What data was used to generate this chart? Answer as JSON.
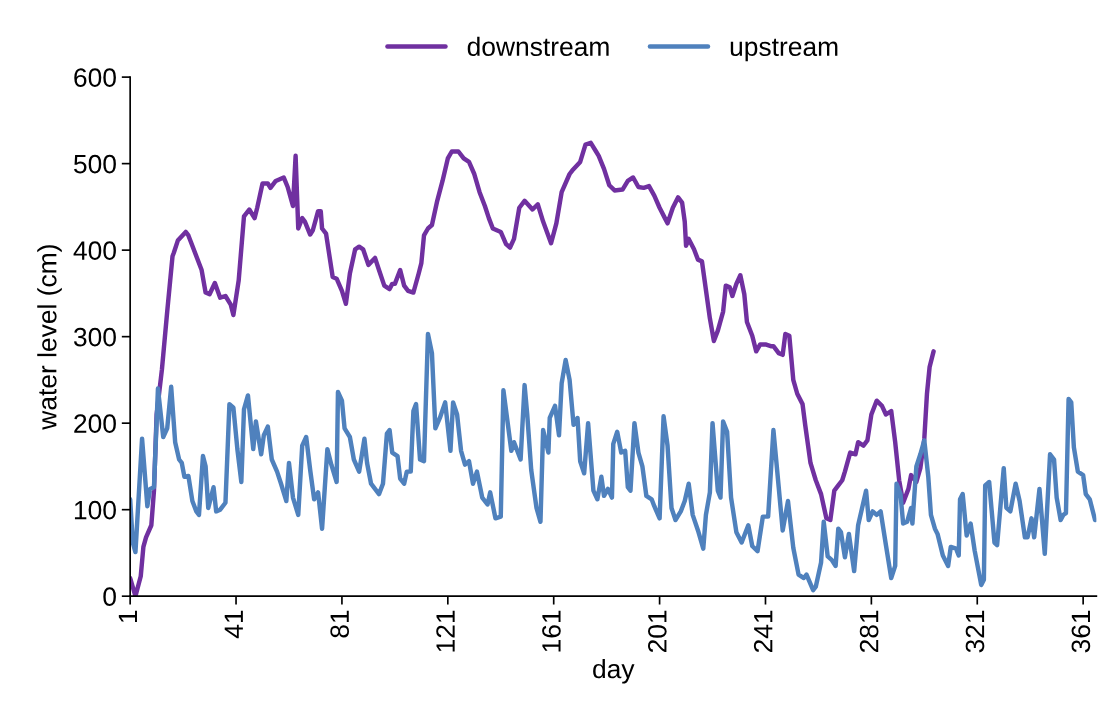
{
  "chart_data": {
    "type": "line",
    "xlabel": "day",
    "ylabel": "water level (cm)",
    "xlim": [
      1,
      366
    ],
    "xticks": [
      1,
      41,
      81,
      121,
      161,
      201,
      241,
      281,
      321,
      361
    ],
    "ylim": [
      0,
      600
    ],
    "yticks": [
      0,
      100,
      200,
      300,
      400,
      500,
      600
    ],
    "grid": false,
    "legend": "top",
    "marker": "none",
    "line_style": "solid",
    "series": [
      {
        "name": "downstream",
        "color": "#7030a0",
        "x": [
          1,
          3,
          5,
          6,
          7,
          9,
          10,
          11,
          13,
          15,
          17,
          17.5,
          19,
          22,
          23,
          25,
          28,
          29.5,
          31,
          33,
          35,
          37,
          39,
          40,
          42,
          44,
          46,
          48,
          49,
          51,
          53,
          54,
          56,
          59,
          60.5,
          62.5,
          63.5,
          64.5,
          66,
          67,
          69,
          70,
          72,
          73,
          73.5,
          75,
          76,
          77.5,
          79,
          81,
          82.5,
          84,
          86,
          87.5,
          89,
          91,
          93.5,
          95,
          97,
          99,
          100,
          101,
          103,
          104.5,
          106,
          108,
          110,
          111,
          112,
          113.5,
          115,
          117,
          119,
          121,
          122.5,
          125,
          127,
          129,
          131,
          133,
          135,
          136.5,
          138,
          141,
          143,
          144.5,
          146,
          148,
          150,
          153,
          155,
          157,
          160,
          162,
          164,
          167,
          168,
          171,
          173,
          175,
          177,
          178,
          180,
          182,
          184,
          187,
          189,
          191,
          193,
          195,
          197,
          199,
          201,
          203,
          204,
          206,
          208,
          209.5,
          210.5,
          211,
          212,
          214,
          215.5,
          217,
          218,
          220,
          221.5,
          223,
          225,
          226,
          227.5,
          228.5,
          230,
          231.5,
          233,
          234,
          236,
          237.5,
          239,
          241,
          243,
          244,
          246,
          247.5,
          248.5,
          250,
          251.5,
          253,
          255,
          256,
          258,
          260,
          262,
          264,
          265.5,
          267,
          268.5,
          270,
          271,
          273,
          275,
          276,
          278,
          279.5,
          281,
          283,
          285,
          286.5,
          288.5,
          290,
          291.5,
          293,
          295,
          296,
          298,
          299.5,
          301,
          302,
          303,
          304.5
        ],
        "values": [
          21,
          0,
          23,
          57,
          68,
          82,
          122,
          210,
          262,
          329,
          393,
          397,
          411,
          421,
          417,
          401,
          377,
          351,
          349,
          362,
          345,
          347,
          337,
          325,
          365,
          439,
          447,
          437,
          449,
          477,
          477,
          472,
          480,
          484,
          473,
          451,
          509,
          425,
          437,
          433,
          418,
          423,
          445,
          445,
          425,
          419,
          399,
          369,
          367,
          353,
          338,
          373,
          401,
          404,
          401,
          383,
          391,
          377,
          359,
          355,
          361,
          361,
          377,
          359,
          353,
          351,
          373,
          385,
          417,
          425,
          429,
          457,
          480,
          506,
          514,
          514,
          506,
          502,
          488,
          467,
          451,
          437,
          425,
          421,
          407,
          403,
          413,
          449,
          457,
          447,
          453,
          433,
          408,
          431,
          467,
          488,
          492,
          502,
          522,
          524,
          514,
          509,
          494,
          475,
          469,
          470,
          480,
          484,
          473,
          472,
          474,
          463,
          449,
          437,
          431,
          449,
          461,
          455,
          433,
          405,
          413,
          401,
          389,
          387,
          365,
          321,
          295,
          307,
          329,
          359,
          357,
          347,
          361,
          371,
          349,
          317,
          301,
          283,
          291,
          291,
          289,
          289,
          281,
          279,
          303,
          301,
          250,
          234,
          222,
          198,
          154,
          134,
          118,
          90,
          88,
          122,
          128,
          134,
          144,
          166,
          164,
          178,
          174,
          180,
          210,
          226,
          220,
          210,
          214,
          178,
          134,
          108,
          124,
          140,
          132,
          148,
          182,
          234,
          265,
          283
        ]
      },
      {
        "name": "upstream",
        "color": "#4f81bd",
        "x": [
          1,
          2,
          3,
          5.5,
          7.5,
          8.5,
          10,
          11.5,
          13.5,
          15,
          16.5,
          18,
          19.5,
          20.5,
          21.5,
          23,
          24.5,
          26,
          27,
          28.5,
          29.5,
          30.5,
          32.5,
          33.5,
          35,
          37,
          38.5,
          40,
          41.5,
          43,
          44,
          45.5,
          47.5,
          48.5,
          50.5,
          51.5,
          53,
          54.5,
          56.5,
          58,
          60,
          61,
          62.5,
          64.5,
          66,
          67.5,
          69,
          70.5,
          72,
          73.5,
          75.5,
          77,
          79,
          79.5,
          81,
          82,
          84,
          85.5,
          87.5,
          89.5,
          90.5,
          92,
          93.5,
          95,
          96.5,
          98,
          99,
          100,
          102,
          103,
          104.5,
          105.5,
          107,
          108,
          109,
          110.5,
          112,
          113.5,
          115,
          116.3,
          118,
          120,
          122,
          123,
          124.5,
          126,
          127.5,
          129,
          130.5,
          132,
          134,
          136,
          137,
          139,
          141,
          142,
          145,
          146,
          148.5,
          150,
          151,
          152.5,
          154.5,
          156,
          157,
          159,
          159.5,
          161.5,
          163,
          164,
          165.5,
          167,
          168.5,
          170,
          171,
          172.5,
          174,
          176,
          177.5,
          179,
          180,
          181.5,
          183,
          183.5,
          185,
          186.5,
          188,
          189,
          190,
          191.5,
          193,
          194.5,
          196,
          198,
          199,
          201,
          202.5,
          204,
          205.5,
          207,
          209,
          210.5,
          212,
          213.5,
          215.5,
          217.5,
          218.5,
          220,
          221,
          223,
          224,
          225,
          226.5,
          228,
          230,
          232,
          234.5,
          236,
          238,
          240,
          242,
          244,
          246,
          247.5,
          249.5,
          251.5,
          253.5,
          255.5,
          256.5,
          259,
          260,
          262,
          263,
          264.5,
          266,
          267.5,
          268.5,
          269.5,
          271,
          272.5,
          274.5,
          276,
          279,
          280,
          281.5,
          283,
          284.5,
          286.5,
          288.5,
          290,
          290.5,
          292,
          293,
          294.5,
          296,
          296.5,
          298,
          299.5,
          301,
          302.5,
          303.5,
          305,
          306,
          308,
          310,
          311,
          313,
          314,
          314.5,
          315.5,
          317,
          318.5,
          320,
          322.5,
          323.5,
          324,
          325.5,
          327.5,
          328.5,
          331,
          332,
          333.5,
          335.5,
          337,
          339,
          340,
          341.5,
          342.5,
          344.5,
          346.5,
          348.5,
          350,
          351,
          352.5,
          353.5,
          354.5,
          355.5,
          356.5,
          357.5,
          359,
          361,
          362,
          363.5,
          365.5
        ],
        "values": [
          112,
          62,
          51,
          182,
          104,
          124,
          126,
          240,
          184,
          194,
          242,
          178,
          158,
          154,
          138,
          139,
          110,
          98,
          94,
          162,
          150,
          102,
          126,
          98,
          100,
          108,
          222,
          218,
          170,
          132,
          216,
          232,
          170,
          202,
          164,
          186,
          196,
          158,
          144,
          130,
          110,
          154,
          114,
          94,
          174,
          184,
          146,
          112,
          120,
          78,
          170,
          152,
          132,
          236,
          226,
          194,
          184,
          158,
          144,
          182,
          154,
          130,
          124,
          118,
          130,
          188,
          192,
          166,
          162,
          136,
          130,
          144,
          144,
          214,
          222,
          158,
          156,
          303,
          281,
          194,
          206,
          224,
          168,
          224,
          210,
          168,
          152,
          156,
          130,
          144,
          114,
          106,
          120,
          90,
          92,
          238,
          168,
          178,
          158,
          244,
          210,
          146,
          102,
          86,
          192,
          166,
          206,
          220,
          186,
          246,
          273,
          250,
          198,
          206,
          156,
          142,
          200,
          122,
          112,
          138,
          116,
          124,
          114,
          176,
          190,
          166,
          168,
          126,
          122,
          200,
          166,
          150,
          116,
          112,
          104,
          90,
          208,
          174,
          102,
          88,
          98,
          110,
          130,
          94,
          76,
          55,
          94,
          120,
          200,
          122,
          114,
          202,
          190,
          114,
          74,
          62,
          82,
          58,
          52,
          92,
          92,
          192,
          126,
          76,
          110,
          56,
          25,
          21,
          25,
          7,
          11,
          39,
          86,
          46,
          42,
          35,
          78,
          74,
          45,
          72,
          29,
          82,
          122,
          88,
          98,
          94,
          98,
          59,
          21,
          35,
          130,
          118,
          84,
          86,
          102,
          84,
          150,
          164,
          180,
          138,
          94,
          78,
          72,
          47,
          35,
          57,
          55,
          47,
          112,
          118,
          70,
          84,
          53,
          13,
          19,
          128,
          132,
          62,
          59,
          148,
          102,
          98,
          130,
          110,
          68,
          68,
          90,
          68,
          124,
          49,
          164,
          158,
          114,
          88,
          94,
          96,
          228,
          224,
          172,
          144,
          140,
          118,
          112,
          88
        ]
      }
    ]
  }
}
